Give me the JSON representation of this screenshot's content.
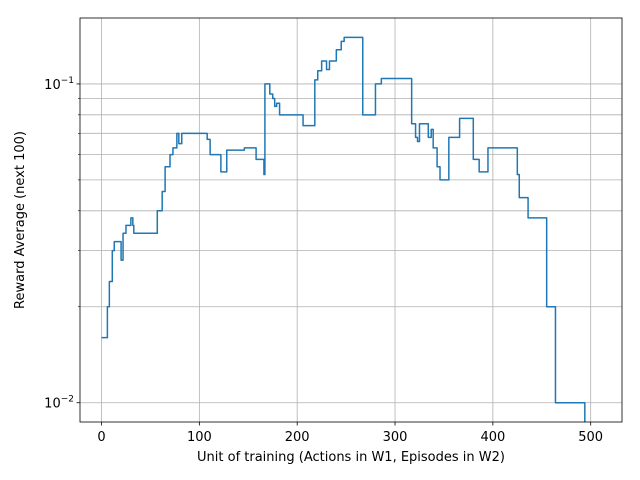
{
  "chart_data": {
    "type": "line",
    "xlabel": "Unit of training (Actions in W1, Episodes in W2)",
    "ylabel": "Reward Average (next 100)",
    "yscale": "log",
    "grid": true,
    "color": "#1f77b4",
    "drawstyle": "steps-post",
    "x": [
      0,
      6,
      8,
      11,
      13,
      20,
      22,
      25,
      30,
      32,
      33,
      57,
      62,
      65,
      70,
      73,
      77,
      79,
      82,
      108,
      111,
      122,
      128,
      146,
      158,
      166,
      167,
      172,
      175,
      177,
      179,
      182,
      206,
      218,
      221,
      225,
      230,
      233,
      240,
      245,
      248,
      267,
      280,
      286,
      317,
      321,
      323,
      325,
      334,
      337,
      339,
      343,
      346,
      355,
      366,
      380,
      386,
      395,
      425,
      427,
      436,
      455,
      464,
      494
    ],
    "values": [
      0.016,
      0.02,
      0.024,
      0.03,
      0.032,
      0.028,
      0.034,
      0.036,
      0.038,
      0.036,
      0.034,
      0.04,
      0.046,
      0.055,
      0.06,
      0.063,
      0.07,
      0.065,
      0.07,
      0.067,
      0.06,
      0.053,
      0.062,
      0.063,
      0.058,
      0.052,
      0.1,
      0.093,
      0.09,
      0.085,
      0.087,
      0.08,
      0.074,
      0.103,
      0.11,
      0.118,
      0.111,
      0.118,
      0.128,
      0.136,
      0.14,
      0.08,
      0.1,
      0.104,
      0.075,
      0.068,
      0.066,
      0.075,
      0.068,
      0.072,
      0.063,
      0.055,
      0.05,
      0.068,
      0.078,
      0.058,
      0.053,
      0.063,
      0.052,
      0.044,
      0.038,
      0.02,
      0.01,
      0.008
    ],
    "xlim": [
      -22,
      532
    ],
    "ylim": [
      0.0087,
      0.161
    ],
    "xticks": [
      0,
      100,
      200,
      300,
      400,
      500
    ],
    "yticks": [
      {
        "value": 0.01,
        "label": "10−2"
      },
      {
        "value": 0.1,
        "label": "10−1"
      }
    ],
    "yminorticks": [
      0.02,
      0.03,
      0.04,
      0.05,
      0.06,
      0.07,
      0.08,
      0.09
    ]
  }
}
